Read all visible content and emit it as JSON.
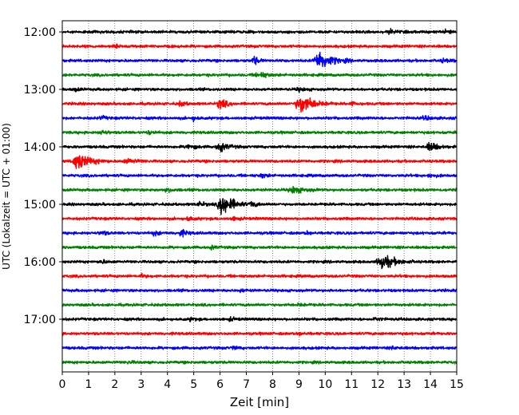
{
  "chart_data": {
    "type": "line",
    "title": "",
    "xlabel": "Zeit  [min]",
    "ylabel": "UTC (Lokalzeit = UTC + 01:00)",
    "xlim": [
      0,
      15
    ],
    "x_ticks": [
      0,
      1,
      2,
      3,
      4,
      5,
      6,
      7,
      8,
      9,
      10,
      11,
      12,
      13,
      14,
      15
    ],
    "y_tick_labels": [
      "12:00",
      "13:00",
      "14:00",
      "15:00",
      "16:00",
      "17:00"
    ],
    "grid": {
      "x": true,
      "y": false
    },
    "trace_interval_minutes": 15,
    "color_cycle": [
      "#000000",
      "#ff0000",
      "#0000ff",
      "#008000"
    ],
    "series": [
      {
        "start": "12:00",
        "color": "#000000",
        "events": [
          {
            "t": 12.5,
            "amp": 2,
            "dur": 0.6
          },
          {
            "t": 14.6,
            "amp": 1.5,
            "dur": 0.6
          }
        ]
      },
      {
        "start": "12:15",
        "color": "#ff0000",
        "events": [
          {
            "t": 2.0,
            "amp": 1,
            "dur": 0.5
          }
        ]
      },
      {
        "start": "12:30",
        "color": "#0000ff",
        "events": [
          {
            "t": 7.3,
            "amp": 4,
            "dur": 0.4
          },
          {
            "t": 9.8,
            "amp": 9,
            "dur": 1.2
          },
          {
            "t": 14.5,
            "amp": 1.5,
            "dur": 0.6
          }
        ]
      },
      {
        "start": "12:45",
        "color": "#008000",
        "events": [
          {
            "t": 7.5,
            "amp": 2.5,
            "dur": 0.8
          }
        ]
      },
      {
        "start": "13:00",
        "color": "#000000",
        "events": [
          {
            "t": 0.5,
            "amp": 1.5,
            "dur": 0.4
          },
          {
            "t": 9.0,
            "amp": 1.5,
            "dur": 0.6
          }
        ]
      },
      {
        "start": "13:15",
        "color": "#ff0000",
        "events": [
          {
            "t": 4.5,
            "amp": 2.5,
            "dur": 0.4
          },
          {
            "t": 6.0,
            "amp": 5,
            "dur": 0.6
          },
          {
            "t": 9.1,
            "amp": 9,
            "dur": 1.2
          },
          {
            "t": 11.0,
            "amp": 1.5,
            "dur": 0.5
          }
        ]
      },
      {
        "start": "13:30",
        "color": "#0000ff",
        "events": [
          {
            "t": 1.5,
            "amp": 1.5,
            "dur": 0.5
          },
          {
            "t": 5.0,
            "amp": 2,
            "dur": 0.4
          },
          {
            "t": 13.8,
            "amp": 1.5,
            "dur": 0.6
          }
        ]
      },
      {
        "start": "13:45",
        "color": "#008000",
        "events": [
          {
            "t": 1.5,
            "amp": 2,
            "dur": 0.5
          },
          {
            "t": 3.3,
            "amp": 1.5,
            "dur": 0.5
          }
        ]
      },
      {
        "start": "14:00",
        "color": "#000000",
        "events": [
          {
            "t": 4.8,
            "amp": 2.5,
            "dur": 0.6
          },
          {
            "t": 6.0,
            "amp": 4,
            "dur": 0.8
          },
          {
            "t": 14.0,
            "amp": 4.5,
            "dur": 0.7
          }
        ]
      },
      {
        "start": "14:15",
        "color": "#ff0000",
        "events": [
          {
            "t": 0.6,
            "amp": 8,
            "dur": 1.2
          },
          {
            "t": 2.5,
            "amp": 2,
            "dur": 1.0
          }
        ]
      },
      {
        "start": "14:30",
        "color": "#0000ff",
        "events": [
          {
            "t": 7.6,
            "amp": 2,
            "dur": 0.5
          },
          {
            "t": 14.0,
            "amp": 1.5,
            "dur": 0.5
          }
        ]
      },
      {
        "start": "14:45",
        "color": "#008000",
        "events": [
          {
            "t": 4.0,
            "amp": 1.5,
            "dur": 0.6
          },
          {
            "t": 8.8,
            "amp": 3,
            "dur": 1.0
          }
        ]
      },
      {
        "start": "15:00",
        "color": "#000000",
        "events": [
          {
            "t": 5.2,
            "amp": 2,
            "dur": 0.6
          },
          {
            "t": 6.1,
            "amp": 11,
            "dur": 1.0
          },
          {
            "t": 7.2,
            "amp": 2.5,
            "dur": 0.5
          }
        ]
      },
      {
        "start": "15:15",
        "color": "#ff0000",
        "events": [
          {
            "t": 4.8,
            "amp": 2,
            "dur": 0.5
          },
          {
            "t": 6.5,
            "amp": 1.5,
            "dur": 0.5
          }
        ]
      },
      {
        "start": "15:30",
        "color": "#0000ff",
        "events": [
          {
            "t": 1.5,
            "amp": 2,
            "dur": 0.5
          },
          {
            "t": 3.5,
            "amp": 2,
            "dur": 0.5
          },
          {
            "t": 4.5,
            "amp": 3,
            "dur": 0.6
          },
          {
            "t": 9.3,
            "amp": 1.5,
            "dur": 0.4
          }
        ]
      },
      {
        "start": "15:45",
        "color": "#008000",
        "events": [
          {
            "t": 5.7,
            "amp": 1.5,
            "dur": 0.4
          }
        ]
      },
      {
        "start": "16:00",
        "color": "#000000",
        "events": [
          {
            "t": 1.5,
            "amp": 1.5,
            "dur": 0.5
          },
          {
            "t": 12.2,
            "amp": 7,
            "dur": 1.2
          }
        ]
      },
      {
        "start": "16:15",
        "color": "#ff0000",
        "events": [
          {
            "t": 3.0,
            "amp": 1.2,
            "dur": 0.5
          }
        ]
      },
      {
        "start": "16:30",
        "color": "#0000ff",
        "events": [
          {
            "t": 6.8,
            "amp": 1.2,
            "dur": 0.5
          }
        ]
      },
      {
        "start": "16:45",
        "color": "#008000",
        "events": [
          {
            "t": 9.0,
            "amp": 1.2,
            "dur": 0.5
          }
        ]
      },
      {
        "start": "17:00",
        "color": "#000000",
        "events": [
          {
            "t": 4.9,
            "amp": 1.5,
            "dur": 0.4
          },
          {
            "t": 6.4,
            "amp": 1.5,
            "dur": 0.4
          },
          {
            "t": 11.9,
            "amp": 1.5,
            "dur": 0.5
          }
        ]
      },
      {
        "start": "17:15",
        "color": "#ff0000",
        "events": [
          {
            "t": 9.0,
            "amp": 1.2,
            "dur": 0.5
          }
        ]
      },
      {
        "start": "17:30",
        "color": "#0000ff",
        "events": [
          {
            "t": 6.5,
            "amp": 1.2,
            "dur": 0.5
          },
          {
            "t": 12.6,
            "amp": 1.2,
            "dur": 0.5
          }
        ]
      },
      {
        "start": "17:45",
        "color": "#008000",
        "events": [
          {
            "t": 2.5,
            "amp": 1.2,
            "dur": 0.5
          }
        ]
      }
    ]
  }
}
